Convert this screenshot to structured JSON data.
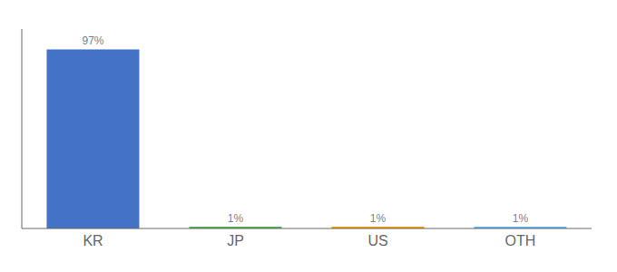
{
  "chart_data": {
    "type": "bar",
    "categories": [
      "KR",
      "JP",
      "US",
      "OTH"
    ],
    "values": [
      97,
      1,
      1,
      1
    ],
    "value_labels": [
      "97%",
      "1%",
      "1%",
      "1%"
    ],
    "colors": [
      "#4472c4",
      "#4caf50",
      "#ff9800",
      "#64b5f6"
    ],
    "ylim": [
      0,
      108
    ],
    "tick_labels": "x",
    "grid": false
  }
}
